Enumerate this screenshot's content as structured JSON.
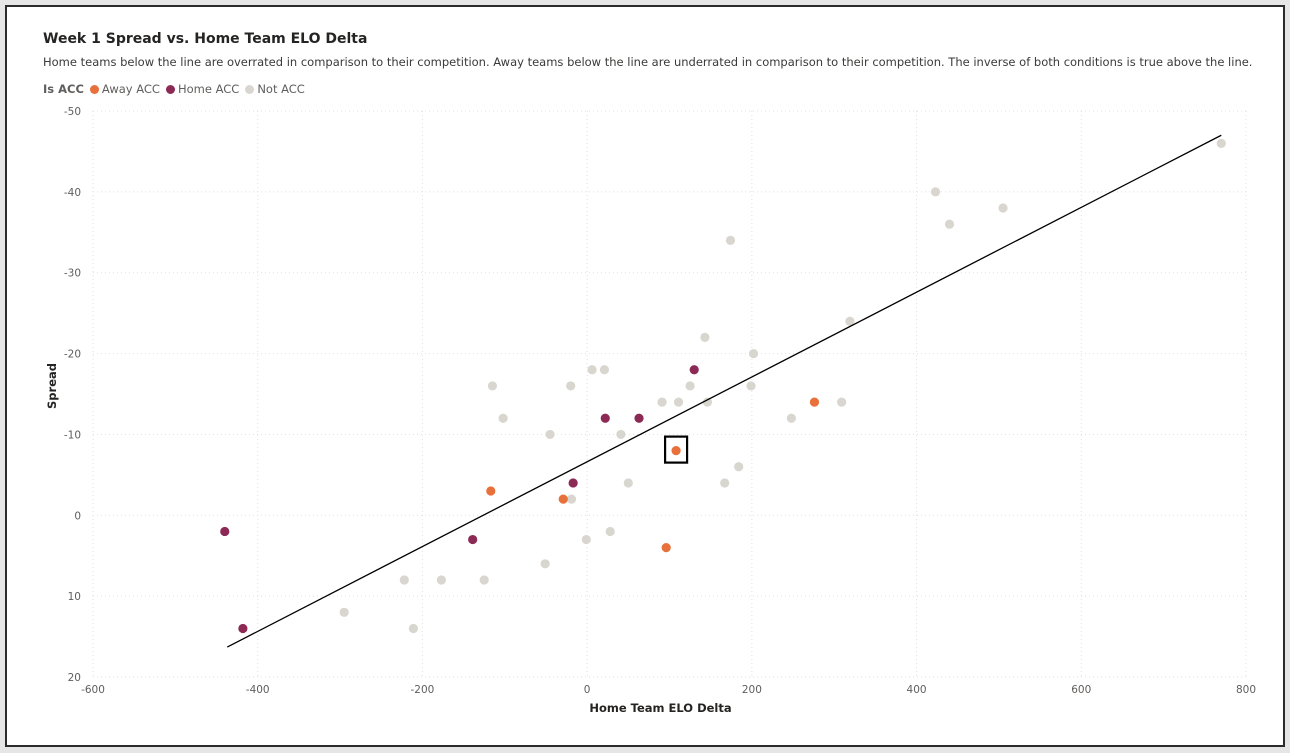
{
  "chart_data": {
    "type": "scatter",
    "title": "Week 1 Spread vs. Home Team ELO Delta",
    "subtitle": "Home teams below the line are overrated in comparison to their competition. Away teams below the line are underrated in comparison to their competition. The inverse of both conditions is true above the line.",
    "xlabel": "Home Team ELO Delta",
    "ylabel": "Spread",
    "xlim": [
      -600,
      800
    ],
    "ylim": [
      20,
      -50
    ],
    "y_reversed": true,
    "x_ticks": [
      -600,
      -400,
      -200,
      0,
      200,
      400,
      600,
      800
    ],
    "y_ticks": [
      -50,
      -40,
      -30,
      -20,
      -10,
      0,
      10,
      20
    ],
    "grid": true,
    "legend": {
      "title": "Is ACC",
      "placement": "top-left",
      "entries": [
        {
          "name": "Away ACC",
          "color": "#e8703a"
        },
        {
          "name": "Home ACC",
          "color": "#8c2a55"
        },
        {
          "name": "Not ACC",
          "color": "#d9d6d0"
        }
      ]
    },
    "trend_line": {
      "x": [
        -437,
        770
      ],
      "y": [
        16.3,
        -47
      ],
      "color": "#000000"
    },
    "highlight": {
      "series": "Away ACC",
      "x": 108,
      "y": -8
    },
    "series": [
      {
        "name": "Away ACC",
        "color": "#e8703a",
        "points": [
          {
            "x": -117,
            "y": -3
          },
          {
            "x": -29,
            "y": -2
          },
          {
            "x": 108,
            "y": -8
          },
          {
            "x": 96,
            "y": 4
          },
          {
            "x": 276,
            "y": -14
          }
        ]
      },
      {
        "name": "Home ACC",
        "color": "#8c2a55",
        "points": [
          {
            "x": -440,
            "y": 2
          },
          {
            "x": -418,
            "y": 14
          },
          {
            "x": -139,
            "y": 3
          },
          {
            "x": -17,
            "y": -4
          },
          {
            "x": 22,
            "y": -12
          },
          {
            "x": 63,
            "y": -12
          },
          {
            "x": 130,
            "y": -18
          }
        ]
      },
      {
        "name": "Not ACC",
        "color": "#d9d6d0",
        "points": [
          {
            "x": -295,
            "y": 12
          },
          {
            "x": -222,
            "y": 8
          },
          {
            "x": -211,
            "y": 14
          },
          {
            "x": -177,
            "y": 8
          },
          {
            "x": -125,
            "y": 8
          },
          {
            "x": -115,
            "y": -16
          },
          {
            "x": -102,
            "y": -12
          },
          {
            "x": -51,
            "y": 6
          },
          {
            "x": -45,
            "y": -10
          },
          {
            "x": -20,
            "y": -16
          },
          {
            "x": -19,
            "y": -2
          },
          {
            "x": -1,
            "y": 3
          },
          {
            "x": 6,
            "y": -18
          },
          {
            "x": 21,
            "y": -18
          },
          {
            "x": 28,
            "y": 2
          },
          {
            "x": 41,
            "y": -10
          },
          {
            "x": 50,
            "y": -4
          },
          {
            "x": 91,
            "y": -14
          },
          {
            "x": 111,
            "y": -14
          },
          {
            "x": 125,
            "y": -16
          },
          {
            "x": 143,
            "y": -22
          },
          {
            "x": 146,
            "y": -14
          },
          {
            "x": 167,
            "y": -4
          },
          {
            "x": 174,
            "y": -34
          },
          {
            "x": 184,
            "y": -6
          },
          {
            "x": 199,
            "y": -16
          },
          {
            "x": 202,
            "y": -20
          },
          {
            "x": 248,
            "y": -12
          },
          {
            "x": 309,
            "y": -14
          },
          {
            "x": 319,
            "y": -24
          },
          {
            "x": 423,
            "y": -40
          },
          {
            "x": 440,
            "y": -36
          },
          {
            "x": 505,
            "y": -38
          },
          {
            "x": 770,
            "y": -46
          }
        ]
      }
    ]
  }
}
